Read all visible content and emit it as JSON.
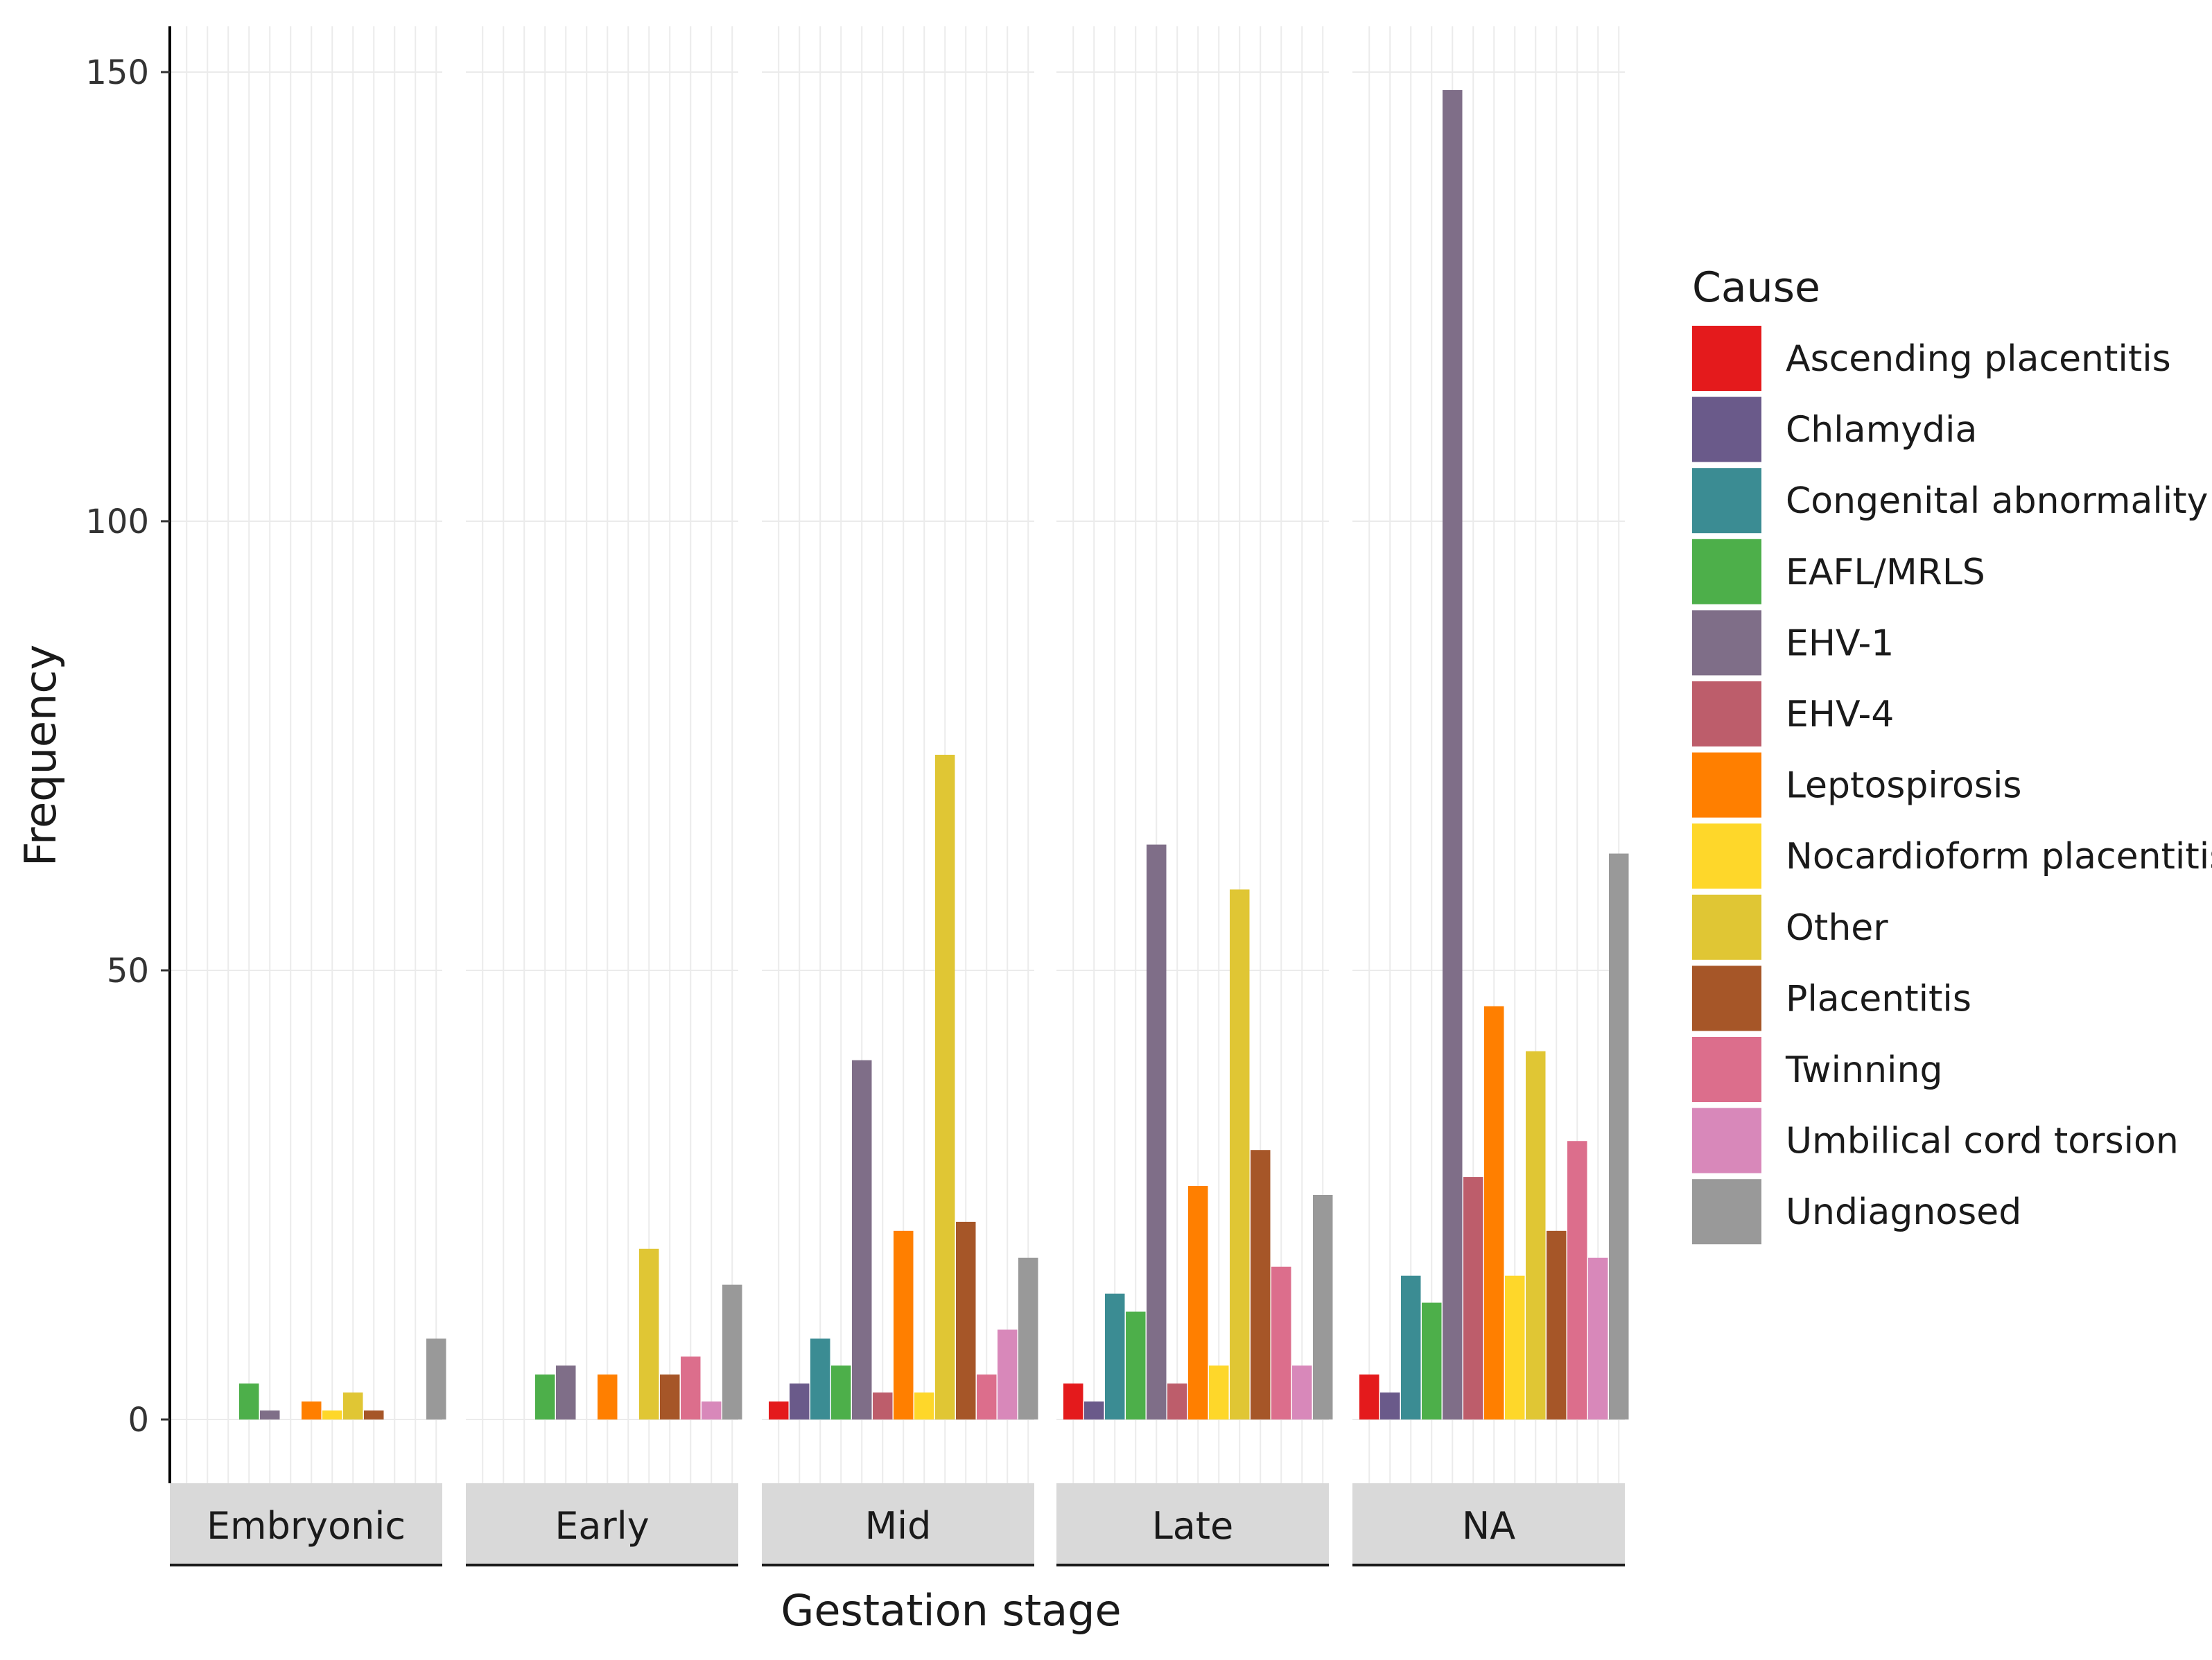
{
  "chart_data": {
    "type": "bar",
    "facet_by": "Gestation stage",
    "xlabel": "Gestation stage",
    "ylabel": "Frequency",
    "ylim": [
      -7,
      155
    ],
    "yticks": [
      0,
      50,
      100,
      150
    ],
    "ytick_labels": [
      "0",
      "50",
      "100",
      "150"
    ],
    "legend_title": "Cause",
    "legend_position": "right",
    "grid": true,
    "facets": [
      "Embryonic",
      "Early",
      "Mid",
      "Late",
      "NA"
    ],
    "series": [
      {
        "name": "Ascending placentitis",
        "color": "#e41a1c",
        "values": [
          0,
          0,
          2,
          4,
          5
        ]
      },
      {
        "name": "Chlamydia",
        "color": "#6a5a8a",
        "values": [
          0,
          0,
          4,
          2,
          3
        ]
      },
      {
        "name": "Congenital abnormality",
        "color": "#3b8c93",
        "values": [
          0,
          0,
          9,
          14,
          16
        ]
      },
      {
        "name": "EAFL/MRLS",
        "color": "#4daf4a",
        "values": [
          4,
          5,
          6,
          12,
          13
        ]
      },
      {
        "name": "EHV-1",
        "color": "#7f6e88",
        "values": [
          1,
          6,
          40,
          64,
          148
        ]
      },
      {
        "name": "EHV-4",
        "color": "#bd5d6b",
        "values": [
          0,
          0,
          3,
          4,
          27
        ]
      },
      {
        "name": "Leptospirosis",
        "color": "#ff7f00",
        "values": [
          2,
          5,
          21,
          26,
          46
        ]
      },
      {
        "name": "Nocardioform placentitis",
        "color": "#fed72a",
        "values": [
          1,
          0,
          3,
          6,
          16
        ]
      },
      {
        "name": "Other",
        "color": "#e0c634",
        "values": [
          3,
          19,
          74,
          59,
          41
        ]
      },
      {
        "name": "Placentitis",
        "color": "#a65628",
        "values": [
          1,
          5,
          22,
          30,
          21
        ]
      },
      {
        "name": "Twinning",
        "color": "#dc6e8c",
        "values": [
          0,
          7,
          5,
          17,
          31
        ]
      },
      {
        "name": "Umbilical cord torsion",
        "color": "#d888ba",
        "values": [
          0,
          2,
          10,
          6,
          18
        ]
      },
      {
        "name": "Undiagnosed",
        "color": "#999999",
        "values": [
          9,
          15,
          18,
          25,
          63
        ]
      }
    ]
  }
}
